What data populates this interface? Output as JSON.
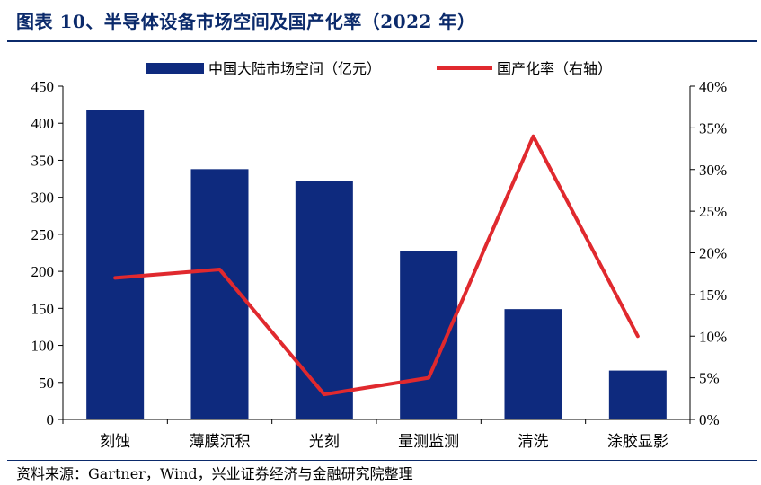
{
  "title": "图表 10、半导体设备市场空间及国产化率（2022 年）",
  "source": "资料来源：Gartner，Wind，兴业证券经济与金融研究院整理",
  "colors": {
    "bar": "#0e2a7e",
    "line": "#e0292e",
    "title": "#0b2a6b"
  },
  "chart_data": {
    "type": "bar",
    "title": "图表 10、半导体设备市场空间及国产化率（2022 年）",
    "categories": [
      "刻蚀",
      "薄膜沉积",
      "光刻",
      "量测监测",
      "清洗",
      "涂胶显影"
    ],
    "series": [
      {
        "name": "中国大陆市场空间（亿元）",
        "type": "bar",
        "axis": "left",
        "values": [
          418,
          338,
          322,
          227,
          149,
          66
        ]
      },
      {
        "name": "国产化率（右轴）",
        "type": "line",
        "axis": "right",
        "values": [
          0.17,
          0.18,
          0.03,
          0.05,
          0.34,
          0.1
        ]
      }
    ],
    "ylim": [
      0,
      450
    ],
    "y_ticks": [
      "0",
      "50",
      "100",
      "150",
      "200",
      "250",
      "300",
      "350",
      "400",
      "450"
    ],
    "y2lim": [
      0,
      0.4
    ],
    "y2_ticks": [
      "0%",
      "5%",
      "10%",
      "15%",
      "20%",
      "25%",
      "30%",
      "35%",
      "40%"
    ],
    "legend_position": "top-center",
    "grid": false
  }
}
